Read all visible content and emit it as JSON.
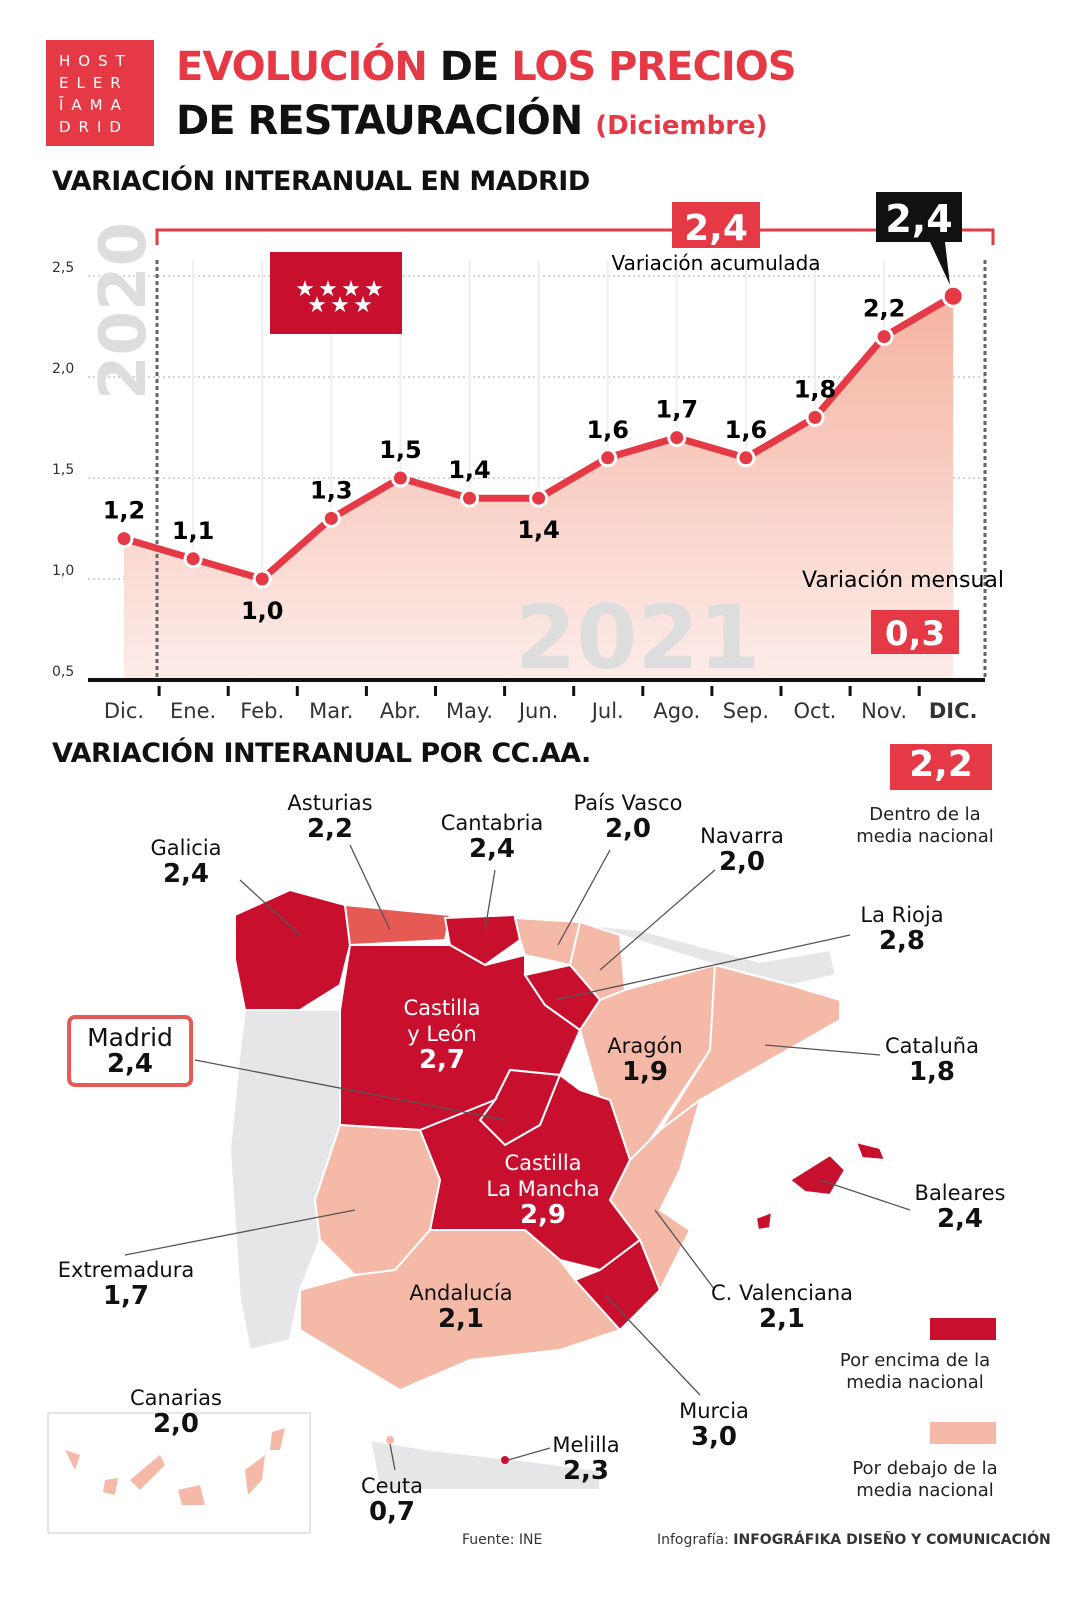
{
  "logo": {
    "lines": [
      "HOST",
      "ELER",
      "ĪAMA",
      "DRID"
    ]
  },
  "title": {
    "part1": "EVOLUCIÓN",
    "part2": "DE",
    "part3": "LOS PRECIOS",
    "line2": "DE RESTAURACIÓN",
    "sub": "(Diciembre)"
  },
  "section1": "VARIACIÓN INTERANUAL EN MADRID",
  "section2": "VARIACIÓN INTERANUAL POR CC.AA.",
  "colors": {
    "accent": "#e63946",
    "above": "#c8102e",
    "below": "#f5b9a8",
    "asturias": "#e55a55"
  },
  "chart_data": {
    "type": "line",
    "categories": [
      "Dic.",
      "Ene.",
      "Feb.",
      "Mar.",
      "Abr.",
      "May.",
      "Jun.",
      "Jul.",
      "Ago.",
      "Sep.",
      "Oct.",
      "Nov.",
      "DIC."
    ],
    "values": [
      1.2,
      1.1,
      1.0,
      1.3,
      1.5,
      1.4,
      1.4,
      1.6,
      1.7,
      1.6,
      1.8,
      2.2,
      2.4
    ],
    "data_labels": [
      "1,2",
      "1,1",
      "1,0",
      "1,3",
      "1,5",
      "1,4",
      "1,4",
      "1,6",
      "1,7",
      "1,6",
      "1,8",
      "2,2",
      "2,4"
    ],
    "yticks": [
      "0,5",
      "1,0",
      "1,5",
      "2,0",
      "2,5"
    ],
    "ylim": [
      0.5,
      2.5
    ],
    "year_labels": [
      "2020",
      "2021"
    ],
    "grid": true,
    "annotations": {
      "acumulada_value": "2,4",
      "acumulada_label": "Variación acumulada",
      "last_value": "2,4",
      "mensual_label": "Variación mensual",
      "mensual_value": "0,3"
    }
  },
  "national": {
    "value": "2,2",
    "label": "Dentro de la media nacional"
  },
  "regions": [
    {
      "name": "Asturias",
      "value": "2,2"
    },
    {
      "name": "Cantabria",
      "value": "2,4"
    },
    {
      "name": "País Vasco",
      "value": "2,0"
    },
    {
      "name": "Galicia",
      "value": "2,4"
    },
    {
      "name": "Navarra",
      "value": "2,0"
    },
    {
      "name": "La Rioja",
      "value": "2,8"
    },
    {
      "name": "Madrid",
      "value": "2,4"
    },
    {
      "name": "Castilla y León",
      "value": "2,7"
    },
    {
      "name": "Aragón",
      "value": "1,9"
    },
    {
      "name": "Cataluña",
      "value": "1,8"
    },
    {
      "name": "Castilla La Mancha",
      "value": "2,9"
    },
    {
      "name": "Baleares",
      "value": "2,4"
    },
    {
      "name": "Extremadura",
      "value": "1,7"
    },
    {
      "name": "Andalucía",
      "value": "2,1"
    },
    {
      "name": "C. Valenciana",
      "value": "2,1"
    },
    {
      "name": "Murcia",
      "value": "3,0"
    },
    {
      "name": "Canarias",
      "value": "2,0"
    },
    {
      "name": "Melilla",
      "value": "2,3"
    },
    {
      "name": "Ceuta",
      "value": "0,7"
    }
  ],
  "legend": {
    "above": "Por encima de la media nacional",
    "below": "Por debajo de la media nacional"
  },
  "footer": {
    "source": "Fuente: INE",
    "credit_prefix": "Infografía:",
    "credit": "INFOGRÁFIKA DISEÑO Y COMUNICACIÓN"
  }
}
